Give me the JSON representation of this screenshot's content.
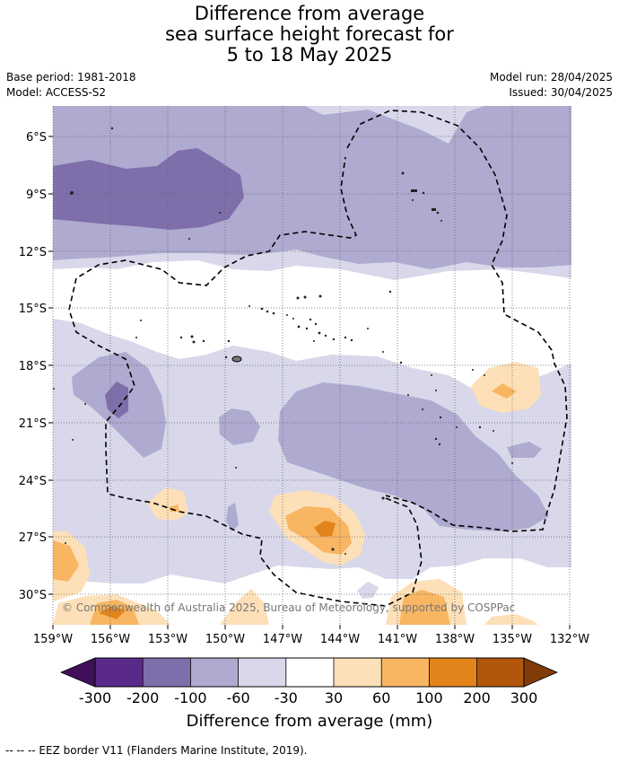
{
  "title": {
    "line1": "Difference from average",
    "line2": "sea surface height forecast for",
    "line3": "5 to 18 May 2025"
  },
  "meta": {
    "base_period": "Base period: 1981-2018",
    "model": "Model: ACCESS-S2",
    "model_run": "Model run: 28/04/2025",
    "issued": "Issued: 30/04/2025"
  },
  "map": {
    "lat_labels": [
      "6°S",
      "9°S",
      "12°S",
      "15°S",
      "18°S",
      "21°S",
      "24°S",
      "27°S",
      "30°S"
    ],
    "lon_labels": [
      "159°W",
      "156°W",
      "153°W",
      "150°W",
      "147°W",
      "144°W",
      "141°W",
      "138°W",
      "135°W",
      "132°W"
    ],
    "copyright": "© Commonwealth of Australia 2025, Bureau of Meteorology, supported by COSPPac"
  },
  "colorbar": {
    "ticks": [
      "-300",
      "-200",
      "-100",
      "-60",
      "-30",
      "30",
      "60",
      "100",
      "200",
      "300"
    ],
    "colors": [
      "#3f0f5b",
      "#5a2a8a",
      "#7e6eaa",
      "#aeaad0",
      "#d8d8ea",
      "#ffffff",
      "#fde0b8",
      "#f8b562",
      "#e2841a",
      "#b2560b",
      "#7f3b08"
    ],
    "label": "Difference from average (mm)"
  },
  "footnote": "--  --  -- EEZ border V11 (Flanders Marine Institute, 2019)."
}
